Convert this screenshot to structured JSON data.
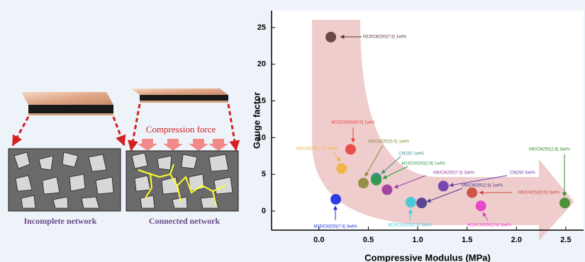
{
  "schematic": {
    "force_label": "Compression force",
    "left_caption": "Incomplete network",
    "right_caption": "Connected network"
  },
  "chart_data": {
    "type": "scatter",
    "x_label": "Compressive Modulus (MPa)",
    "y_label": "Gauge factor",
    "xlim": [
      -0.48,
      2.68
    ],
    "ylim": [
      -2.6,
      27.3
    ],
    "xticks": [
      {
        "value": 0,
        "label": "0.0"
      },
      0.5,
      {
        "value": 1,
        "label": "1.0"
      },
      1.5,
      {
        "value": 2,
        "label": "2.0"
      },
      2.5
    ],
    "yticks": [
      0,
      5,
      10,
      15,
      20,
      25
    ],
    "series": [
      {
        "name": "M15/CM250(7:3) 1wt%",
        "color": "#5a3a36",
        "x": [
          0.12
        ],
        "values": [
          23.7
        ]
      },
      {
        "name": "M15/CM250(5:5) 1wt%",
        "color": "#e8413c",
        "x": [
          0.32
        ],
        "values": [
          8.4
        ]
      },
      {
        "name": "M5/CM250(7:3) 1wt%",
        "color": "#f2b33a",
        "x": [
          0.23
        ],
        "values": [
          5.8
        ]
      },
      {
        "name": "M5/CM250(5:5) 1wt%",
        "color": "#8a8a3a",
        "x": [
          0.45
        ],
        "values": [
          3.8
        ]
      },
      {
        "name": "CM250 1wt%",
        "color": "#3a8a8a",
        "x": [
          0.58
        ],
        "values": [
          4.5
        ]
      },
      {
        "name": "M15/CM250(2:8) 1wt%",
        "color": "#2a9a4a",
        "x": [
          0.58
        ],
        "values": [
          4.2
        ]
      },
      {
        "name": "M5/CM250(7:3) 3wt%",
        "color": "#9a3a9a",
        "x": [
          0.69
        ],
        "values": [
          2.9
        ]
      },
      {
        "name": "M15/CM250(7:3) 3wt%",
        "color": "#1a2ae0",
        "x": [
          0.17
        ],
        "values": [
          1.6
        ]
      },
      {
        "name": "M15/CM250(5:5) 3wt%",
        "color": "#3ac8d8",
        "x": [
          0.93
        ],
        "values": [
          1.2
        ]
      },
      {
        "name": "M5/CM250(2:8) 1wt%",
        "color": "#4a3a8a",
        "x": [
          1.04
        ],
        "values": [
          1.1
        ]
      },
      {
        "name": "CM250 3wt%",
        "color": "#6a3aa8",
        "x": [
          1.26
        ],
        "values": [
          3.4
        ]
      },
      {
        "name": "M5/CM250(5:5) 3wt%",
        "color": "#c84a3a",
        "x": [
          1.55
        ],
        "values": [
          2.5
        ]
      },
      {
        "name": "M15/CM250(2:8) 3wt%",
        "color": "#e83ac8",
        "x": [
          1.64
        ],
        "values": [
          0.7
        ]
      },
      {
        "name": "M5/CM250(2:8) 3wt%",
        "color": "#3a8a2a",
        "x": [
          2.49
        ],
        "values": [
          1.1
        ]
      }
    ]
  }
}
